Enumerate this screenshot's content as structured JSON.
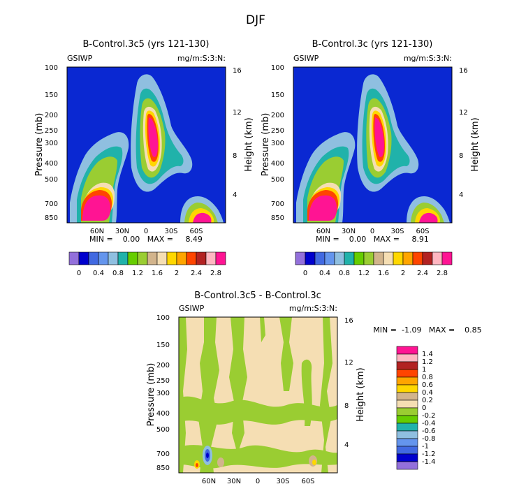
{
  "figure_title": "DJF",
  "colors": {
    "levels": [
      "#9370db",
      "#0000cd",
      "#4169e1",
      "#6495ed",
      "#8fbfe0",
      "#20b2aa",
      "#66cd00",
      "#9acd32",
      "#d2b48c",
      "#f5deb3",
      "#ffd700",
      "#ffa500",
      "#ff4500",
      "#b22222",
      "#ffb6c1",
      "#ff1493"
    ],
    "diff": [
      "#9370db",
      "#0000cd",
      "#4169e1",
      "#6495ed",
      "#8fbfe0",
      "#20b2aa",
      "#66cd00",
      "#9acd32",
      "#f5deb3",
      "#d2b48c",
      "#ffd700",
      "#ffa500",
      "#ff4500",
      "#b22222",
      "#ffb6c1",
      "#ff1493"
    ],
    "bg": "#0a28d2"
  },
  "chart_data": [
    {
      "type": "heatmap",
      "title": "B-Control.3c5 (yrs 121-130)",
      "left_label": "GSIWP",
      "right_label": "mg/m:S:3:N:",
      "ylabel": "Pressure (mb)",
      "y2label": "Height (km)",
      "yticks": [
        "100",
        "150",
        "200",
        "250",
        "300",
        "400",
        "500",
        "700",
        "850"
      ],
      "y2ticks": [
        "16",
        "12",
        "8",
        "4"
      ],
      "xticks": [
        "60N",
        "30N",
        "0",
        "30S",
        "60S"
      ],
      "min_text": "MIN =    0.00   MAX =     8.49",
      "colorbar_labels": [
        "0",
        "0.4",
        "0.8",
        "1.2",
        "1.6",
        "2",
        "2.4",
        "2.8"
      ]
    },
    {
      "type": "heatmap",
      "title": "B-Control.3c (yrs 121-130)",
      "left_label": "GSIWP",
      "right_label": "mg/m:S:3:N:",
      "ylabel": "Pressure (mb)",
      "y2label": "Height (km)",
      "yticks": [
        "100",
        "150",
        "200",
        "250",
        "300",
        "400",
        "500",
        "700",
        "850"
      ],
      "y2ticks": [
        "16",
        "12",
        "8",
        "4"
      ],
      "xticks": [
        "60N",
        "30N",
        "0",
        "30S",
        "60S"
      ],
      "min_text": "MIN =    0.00   MAX =     8.91",
      "colorbar_labels": [
        "0",
        "0.4",
        "0.8",
        "1.2",
        "1.6",
        "2",
        "2.4",
        "2.8"
      ]
    },
    {
      "type": "heatmap",
      "title": "B-Control.3c5 - B-Control.3c",
      "left_label": "GSIWP",
      "right_label": "mg/m:S:3:N:",
      "ylabel": "Pressure (mb)",
      "y2label": "Height (km)",
      "yticks": [
        "100",
        "150",
        "200",
        "250",
        "300",
        "400",
        "500",
        "700",
        "850"
      ],
      "y2ticks": [
        "16",
        "12",
        "8",
        "4"
      ],
      "xticks": [
        "60N",
        "30N",
        "0",
        "30S",
        "60S"
      ],
      "min_text": "MIN =  -1.09   MAX =    0.85",
      "colorbar_labels": [
        "1.4",
        "1.2",
        "1",
        "0.8",
        "0.6",
        "0.4",
        "0.2",
        "0",
        "-0.2",
        "-0.4",
        "-0.6",
        "-0.8",
        "-1",
        "-1.2",
        "-1.4"
      ]
    }
  ]
}
